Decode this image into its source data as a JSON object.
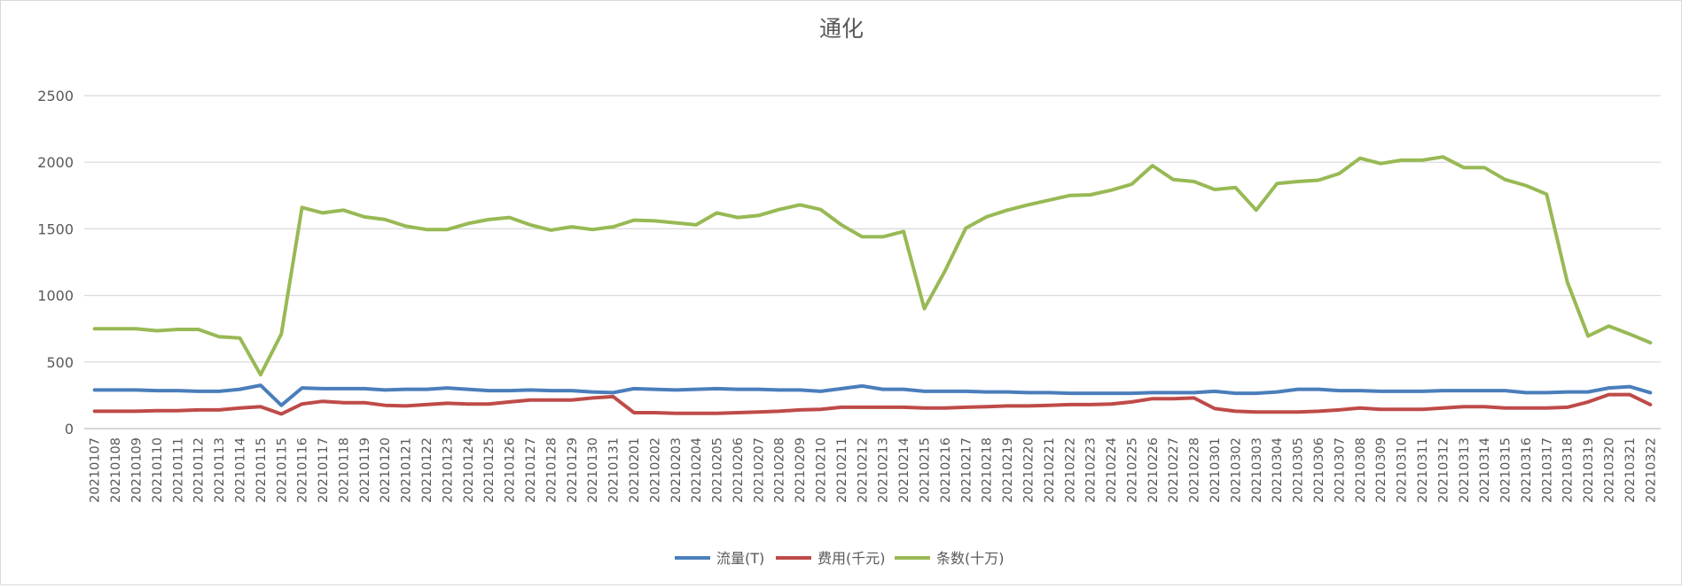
{
  "chart_data": {
    "type": "line",
    "title": "通化",
    "xlabel": "",
    "ylabel": "",
    "ylim": [
      0,
      2500
    ],
    "yticks": [
      "0",
      "500",
      "1000",
      "1500",
      "2000",
      "2500"
    ],
    "grid": true,
    "legend_position": "bottom",
    "categories": [
      "20210107",
      "20210108",
      "20210109",
      "20210110",
      "20210111",
      "20210112",
      "20210113",
      "20210114",
      "20210115",
      "20210115",
      "20210116",
      "20210117",
      "20210118",
      "20210119",
      "20210120",
      "20210121",
      "20210122",
      "20210123",
      "20210124",
      "20210125",
      "20210126",
      "20210127",
      "20210128",
      "20210129",
      "20210130",
      "20210131",
      "20210201",
      "20210202",
      "20210203",
      "20210204",
      "20210205",
      "20210206",
      "20210207",
      "20210208",
      "20210209",
      "20210210",
      "20210211",
      "20210212",
      "20210213",
      "20210214",
      "20210215",
      "20210216",
      "20210217",
      "20210218",
      "20210219",
      "20210220",
      "20210221",
      "20210222",
      "20210223",
      "20210224",
      "20210225",
      "20210226",
      "20210227",
      "20210228",
      "20210301",
      "20210302",
      "20210303",
      "20210304",
      "20210305",
      "20210306",
      "20210307",
      "20210308",
      "20210309",
      "20210310",
      "20210311",
      "20210312",
      "20210313",
      "20210314",
      "20210315",
      "20210316",
      "20210317",
      "20210318",
      "20210319",
      "20210320",
      "20210321",
      "20210322"
    ],
    "series": [
      {
        "name": "流量(T)",
        "color": "#4a7ebb",
        "values": [
          290,
          290,
          290,
          285,
          285,
          280,
          280,
          295,
          325,
          175,
          305,
          300,
          300,
          300,
          290,
          295,
          295,
          305,
          295,
          285,
          285,
          290,
          285,
          285,
          275,
          270,
          300,
          295,
          290,
          295,
          300,
          295,
          295,
          290,
          290,
          280,
          300,
          320,
          295,
          295,
          280,
          280,
          280,
          275,
          275,
          270,
          270,
          265,
          265,
          265,
          265,
          270,
          270,
          270,
          280,
          265,
          265,
          275,
          295,
          295,
          285,
          285,
          280,
          280,
          280,
          285,
          285,
          285,
          285,
          270,
          270,
          275,
          275,
          305,
          315,
          270
        ]
      },
      {
        "name": "费用(千元)",
        "color": "#be4b48",
        "values": [
          130,
          130,
          130,
          135,
          135,
          140,
          140,
          155,
          165,
          110,
          185,
          205,
          195,
          195,
          175,
          170,
          180,
          190,
          185,
          185,
          200,
          215,
          215,
          215,
          230,
          240,
          120,
          120,
          115,
          115,
          115,
          120,
          125,
          130,
          140,
          145,
          160,
          160,
          160,
          160,
          155,
          155,
          160,
          165,
          170,
          170,
          175,
          180,
          180,
          185,
          200,
          225,
          225,
          230,
          150,
          130,
          125,
          125,
          125,
          130,
          140,
          155,
          145,
          145,
          145,
          155,
          165,
          165,
          155,
          155,
          155,
          160,
          200,
          255,
          255,
          180
        ]
      },
      {
        "name": "条数(十万)",
        "color": "#98b954",
        "values": [
          750,
          750,
          750,
          735,
          745,
          745,
          690,
          680,
          405,
          710,
          1660,
          1620,
          1640,
          1590,
          1570,
          1520,
          1495,
          1495,
          1540,
          1570,
          1585,
          1530,
          1490,
          1515,
          1495,
          1515,
          1565,
          1560,
          1545,
          1530,
          1620,
          1585,
          1600,
          1645,
          1680,
          1645,
          1530,
          1440,
          1440,
          1480,
          900,
          1185,
          1505,
          1590,
          1640,
          1680,
          1715,
          1750,
          1755,
          1790,
          1835,
          1975,
          1870,
          1855,
          1795,
          1810,
          1640,
          1840,
          1855,
          1865,
          1915,
          2030,
          1990,
          2015,
          2015,
          2040,
          1960,
          1960,
          1870,
          1825,
          1760,
          1100,
          695,
          770,
          710,
          645
        ]
      }
    ]
  }
}
